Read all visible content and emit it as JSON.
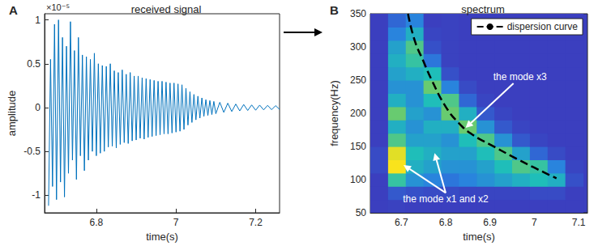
{
  "chart_data": [
    {
      "type": "line",
      "panel": "A",
      "title": "received signal",
      "x_label": "time(s)",
      "y_label": "amplitude",
      "xlim": [
        6.67,
        7.26
      ],
      "xticks": [
        6.8,
        7,
        7.2
      ],
      "ylim": [
        -1.2,
        1.07
      ],
      "yticks": [
        -1,
        -0.5,
        0,
        0.5,
        1
      ],
      "grid": false,
      "color": "#0072bd",
      "annotations": [
        {
          "text": "×10⁻⁵"
        }
      ],
      "x": [
        6.68,
        6.685,
        6.69,
        6.695,
        6.7,
        6.705,
        6.71,
        6.715,
        6.72,
        6.725,
        6.73,
        6.735,
        6.74,
        6.745,
        6.75,
        6.755,
        6.76,
        6.765,
        6.77,
        6.775,
        6.78,
        6.785,
        6.79,
        6.795,
        6.8,
        6.805,
        6.81,
        6.815,
        6.82,
        6.825,
        6.83,
        6.835,
        6.84,
        6.845,
        6.85,
        6.855,
        6.86,
        6.865,
        6.87,
        6.875,
        6.88,
        6.885,
        6.89,
        6.895,
        6.9,
        6.905,
        6.91,
        6.915,
        6.92,
        6.925,
        6.93,
        6.935,
        6.94,
        6.945,
        6.95,
        6.955,
        6.96,
        6.965,
        6.97,
        6.975,
        6.98,
        6.985,
        6.99,
        6.995,
        7,
        7.005,
        7.01,
        7.015,
        7.02,
        7.025,
        7.03,
        7.035,
        7.04,
        7.045,
        7.05,
        7.055,
        7.06,
        7.065,
        7.07,
        7.075,
        7.08,
        7.085,
        7.09,
        7.095,
        7.1,
        7.11,
        7.12,
        7.13,
        7.14,
        7.15,
        7.16,
        7.17,
        7.18,
        7.19,
        7.2,
        7.21,
        7.22,
        7.23,
        7.24,
        7.25,
        7.26
      ],
      "values": [
        -1.12,
        0.55,
        -0.9,
        0.95,
        -1.05,
        1.0,
        -0.85,
        0.8,
        -1.02,
        0.7,
        -0.75,
        0.98,
        -0.6,
        0.65,
        -0.82,
        0.8,
        -0.55,
        0.6,
        -0.72,
        0.58,
        -0.6,
        0.55,
        -0.5,
        0.62,
        -0.55,
        0.5,
        -0.52,
        0.48,
        -0.5,
        0.47,
        -0.45,
        0.5,
        -0.44,
        0.42,
        -0.46,
        0.4,
        -0.42,
        0.43,
        -0.4,
        0.38,
        -0.41,
        0.4,
        -0.38,
        0.36,
        -0.37,
        0.36,
        -0.35,
        0.34,
        -0.36,
        0.33,
        -0.34,
        0.32,
        -0.33,
        0.31,
        -0.32,
        0.3,
        -0.31,
        0.3,
        -0.3,
        0.29,
        -0.3,
        0.28,
        -0.29,
        0.28,
        -0.28,
        0.27,
        -0.27,
        0.26,
        -0.25,
        0.22,
        -0.2,
        0.18,
        -0.17,
        0.15,
        -0.14,
        0.13,
        -0.12,
        0.11,
        -0.1,
        0.09,
        -0.09,
        0.08,
        -0.08,
        0.07,
        -0.07,
        0.06,
        -0.055,
        0.05,
        -0.045,
        0.04,
        -0.038,
        0.035,
        -0.033,
        0.03,
        -0.03,
        0.028,
        -0.026,
        0.025,
        -0.024,
        0.022,
        -0.021
      ]
    },
    {
      "type": "heatmap",
      "panel": "B",
      "title": "spectrum",
      "x_label": "time(s)",
      "y_label": "frequency(Hz)",
      "xlim": [
        6.63,
        7.12
      ],
      "xticks": [
        6.7,
        6.8,
        6.9,
        7,
        7.1
      ],
      "ylim": [
        50,
        350
      ],
      "yticks": [
        50,
        100,
        150,
        200,
        250,
        300,
        350
      ],
      "grid": false,
      "legend": "upper right",
      "cells": {
        "x": [
          6.65,
          6.69,
          6.73,
          6.77,
          6.81,
          6.85,
          6.89,
          6.93,
          6.97,
          7.01,
          7.05,
          7.09
        ],
        "y": [
          60,
          80,
          100,
          120,
          140,
          160,
          180,
          200,
          220,
          240,
          260,
          280,
          300,
          320,
          340
        ],
        "values": [
          [
            0.06,
            0.07,
            0.06,
            0.06,
            0.06,
            0.06,
            0.06,
            0.06,
            0.06,
            0.06,
            0.06,
            0.06
          ],
          [
            0.06,
            0.15,
            0.12,
            0.1,
            0.1,
            0.08,
            0.08,
            0.08,
            0.08,
            0.1,
            0.1,
            0.06
          ],
          [
            0.06,
            0.55,
            0.35,
            0.3,
            0.25,
            0.3,
            0.35,
            0.4,
            0.45,
            0.5,
            0.45,
            0.12
          ],
          [
            0.1,
            0.95,
            0.45,
            0.4,
            0.35,
            0.35,
            0.4,
            0.5,
            0.6,
            0.55,
            0.3,
            0.08
          ],
          [
            0.1,
            0.9,
            0.5,
            0.45,
            0.4,
            0.4,
            0.5,
            0.6,
            0.4,
            0.2,
            0.1,
            0.06
          ],
          [
            0.06,
            0.6,
            0.4,
            0.4,
            0.35,
            0.5,
            0.6,
            0.35,
            0.15,
            0.08,
            0.06,
            0.06
          ],
          [
            0.06,
            0.45,
            0.35,
            0.45,
            0.45,
            0.65,
            0.35,
            0.15,
            0.08,
            0.06,
            0.06,
            0.06
          ],
          [
            0.06,
            0.65,
            0.4,
            0.35,
            0.65,
            0.45,
            0.15,
            0.08,
            0.06,
            0.06,
            0.06,
            0.06
          ],
          [
            0.06,
            0.45,
            0.35,
            0.5,
            0.6,
            0.2,
            0.08,
            0.06,
            0.06,
            0.06,
            0.06,
            0.06
          ],
          [
            0.06,
            0.35,
            0.35,
            0.65,
            0.3,
            0.1,
            0.06,
            0.06,
            0.06,
            0.06,
            0.06,
            0.06
          ],
          [
            0.06,
            0.4,
            0.45,
            0.5,
            0.12,
            0.06,
            0.06,
            0.06,
            0.06,
            0.06,
            0.06,
            0.06
          ],
          [
            0.06,
            0.45,
            0.55,
            0.25,
            0.07,
            0.06,
            0.06,
            0.06,
            0.06,
            0.06,
            0.06,
            0.06
          ],
          [
            0.06,
            0.4,
            0.6,
            0.12,
            0.07,
            0.06,
            0.06,
            0.06,
            0.06,
            0.06,
            0.06,
            0.06
          ],
          [
            0.06,
            0.3,
            0.45,
            0.08,
            0.07,
            0.06,
            0.06,
            0.06,
            0.06,
            0.06,
            0.06,
            0.06
          ],
          [
            0.06,
            0.2,
            0.3,
            0.06,
            0.07,
            0.06,
            0.06,
            0.06,
            0.06,
            0.06,
            0.06,
            0.06
          ]
        ]
      },
      "series": [
        {
          "name": "dispersion curve",
          "type": "line",
          "color": "#000000",
          "line_style": "dashed",
          "x": [
            6.715,
            6.73,
            6.75,
            6.77,
            6.8,
            6.83,
            6.86,
            6.9,
            6.95,
            7,
            7.05
          ],
          "values": [
            350,
            310,
            278,
            248,
            210,
            185,
            168,
            153,
            135,
            118,
            102
          ]
        }
      ],
      "annotations": [
        {
          "text": "the mode x3",
          "xy": [
            [
              6.845,
              178
            ]
          ],
          "xytext": [
            6.953,
            245
          ]
        },
        {
          "text": "the mode x1 and x2",
          "xy": [
            [
              6.705,
              122
            ],
            [
              6.775,
              140
            ]
          ],
          "xytext": [
            6.8,
            80
          ]
        }
      ]
    }
  ]
}
